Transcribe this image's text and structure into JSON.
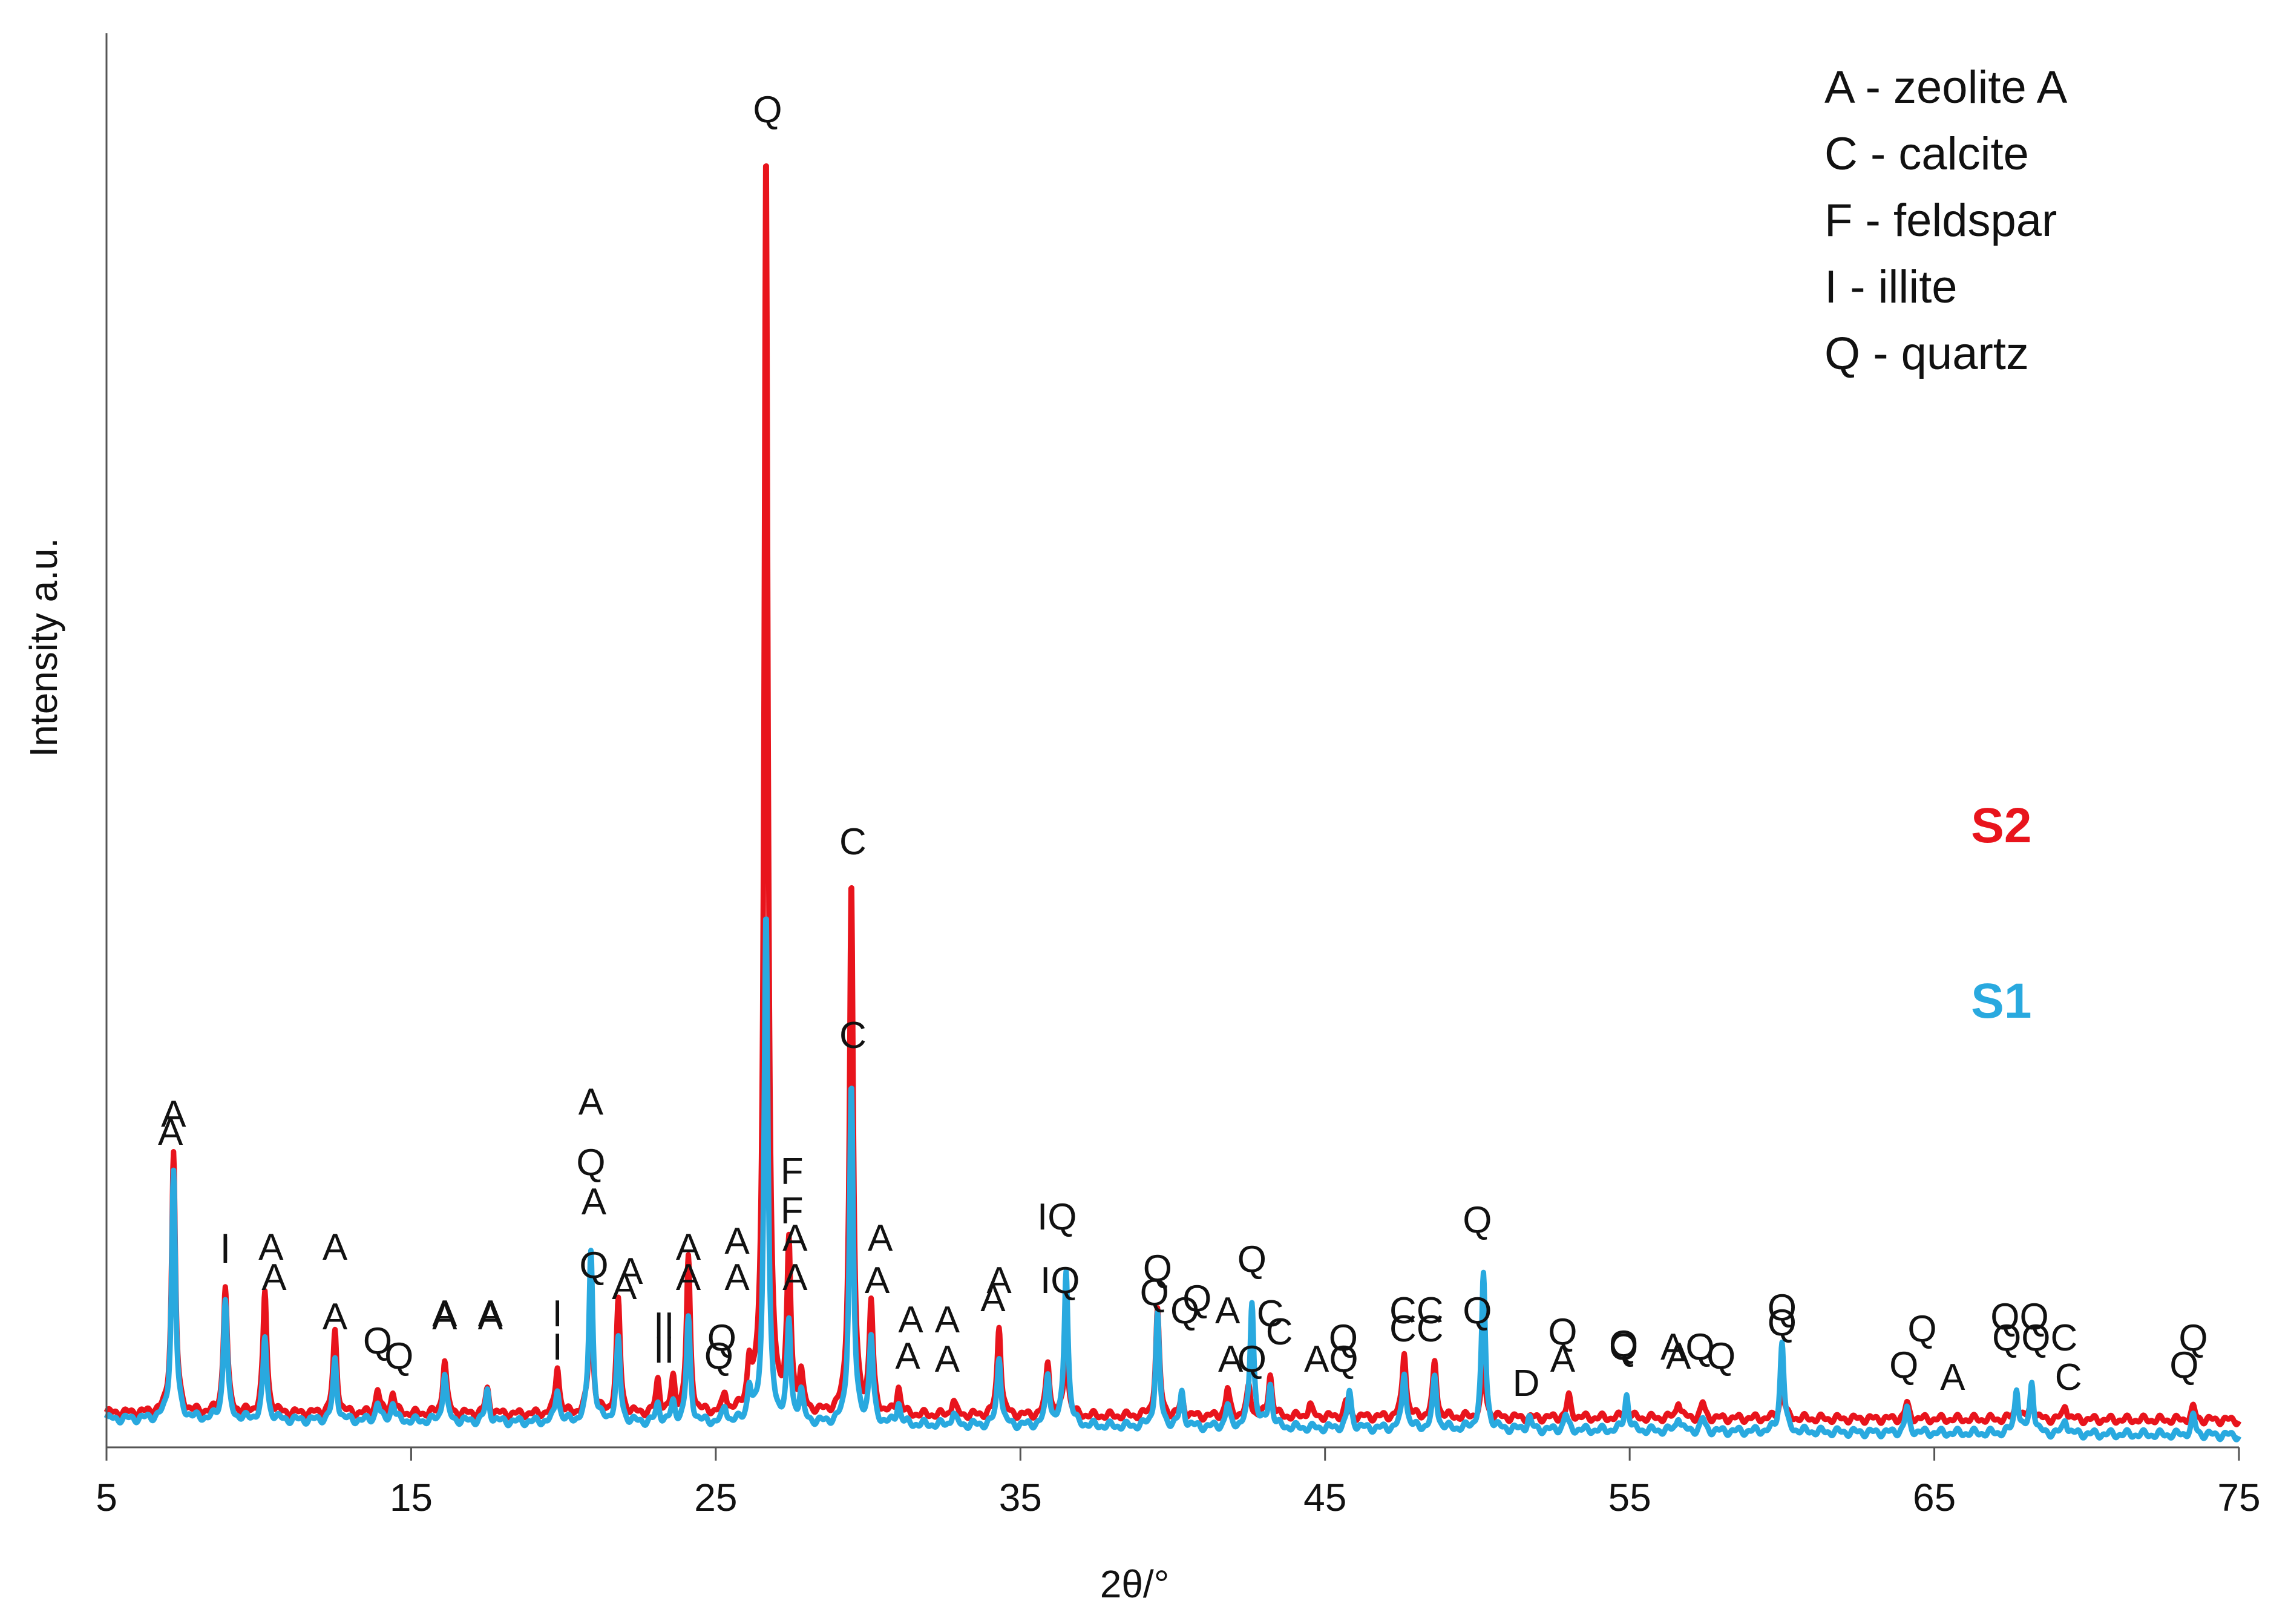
{
  "chart_data": {
    "type": "line",
    "title": "",
    "xlabel": "2θ/°",
    "ylabel": "Intensity a.u.",
    "xlim": [
      5,
      75
    ],
    "xticks": [
      5,
      15,
      25,
      35,
      45,
      55,
      65,
      75
    ],
    "xtick_labels": [
      "5",
      "15",
      "25",
      "35",
      "45",
      "55",
      "65",
      "75"
    ],
    "grid": false,
    "colors": {
      "S1": "#29a9df",
      "S2": "#e8141c"
    },
    "legend": {
      "position": "top-right",
      "entries": [
        "A - zeolite A",
        "C - calcite",
        "F - feldspar",
        "I - illite",
        "Q - quartz"
      ]
    },
    "series": [
      {
        "name": "S2",
        "color": "#e8141c",
        "baseline_start": 0.57,
        "baseline_end": 0.45,
        "peaks": [
          [
            7.2,
            4.3
          ],
          [
            8.9,
            2.1
          ],
          [
            10.2,
            2.0
          ],
          [
            12.5,
            1.35
          ],
          [
            13.9,
            0.4
          ],
          [
            14.4,
            0.35
          ],
          [
            16.1,
            0.9
          ],
          [
            17.5,
            0.4
          ],
          [
            19.8,
            0.8
          ],
          [
            20.9,
            2.0
          ],
          [
            21.8,
            1.85
          ],
          [
            23.1,
            0.55
          ],
          [
            23.6,
            0.55
          ],
          [
            24.1,
            2.55
          ],
          [
            25.3,
            0.3
          ],
          [
            26.1,
            0.7
          ],
          [
            26.65,
            21.0
          ],
          [
            27.4,
            2.7
          ],
          [
            27.8,
            0.6
          ],
          [
            29.45,
            8.8
          ],
          [
            30.1,
            1.8
          ],
          [
            31.0,
            0.45
          ],
          [
            32.8,
            0.25
          ],
          [
            34.3,
            1.5
          ],
          [
            35.9,
            0.9
          ],
          [
            36.5,
            1.2
          ],
          [
            39.5,
            1.75
          ],
          [
            40.3,
            0.3
          ],
          [
            41.8,
            0.45
          ],
          [
            42.5,
            0.5
          ],
          [
            43.2,
            0.7
          ],
          [
            44.5,
            0.2
          ],
          [
            45.7,
            0.25
          ],
          [
            47.6,
            1.1
          ],
          [
            48.6,
            0.9
          ],
          [
            50.2,
            0.9
          ],
          [
            53.0,
            0.35
          ],
          [
            54.9,
            0.25
          ],
          [
            56.6,
            0.3
          ],
          [
            57.4,
            0.25
          ],
          [
            60.0,
            0.6
          ],
          [
            64.1,
            0.25
          ],
          [
            67.7,
            0.3
          ],
          [
            68.2,
            0.35
          ],
          [
            69.3,
            0.25
          ],
          [
            73.5,
            0.2
          ]
        ]
      },
      {
        "name": "S1",
        "color": "#29a9df",
        "baseline_start": 0.47,
        "baseline_end": 0.2,
        "peaks": [
          [
            7.2,
            4.1
          ],
          [
            8.9,
            2.0
          ],
          [
            10.2,
            1.35
          ],
          [
            12.5,
            1.0
          ],
          [
            13.9,
            0.3
          ],
          [
            14.4,
            0.3
          ],
          [
            16.1,
            0.8
          ],
          [
            17.5,
            0.5
          ],
          [
            19.8,
            0.55
          ],
          [
            20.9,
            2.85
          ],
          [
            21.8,
            1.35
          ],
          [
            23.1,
            0.3
          ],
          [
            23.6,
            0.3
          ],
          [
            24.1,
            1.7
          ],
          [
            25.3,
            0.25
          ],
          [
            26.1,
            0.55
          ],
          [
            26.65,
            8.5
          ],
          [
            27.4,
            1.6
          ],
          [
            27.8,
            0.5
          ],
          [
            29.45,
            5.6
          ],
          [
            30.1,
            1.4
          ],
          [
            31.0,
            0.35
          ],
          [
            32.8,
            0.2
          ],
          [
            34.3,
            1.15
          ],
          [
            35.9,
            0.85
          ],
          [
            36.5,
            2.6
          ],
          [
            39.5,
            1.85
          ],
          [
            40.3,
            0.55
          ],
          [
            41.8,
            0.35
          ],
          [
            42.6,
            2.1
          ],
          [
            43.2,
            0.7
          ],
          [
            45.8,
            0.6
          ],
          [
            47.6,
            0.95
          ],
          [
            48.6,
            0.85
          ],
          [
            50.2,
            2.55
          ],
          [
            51.7,
            0.2
          ],
          [
            52.9,
            0.25
          ],
          [
            54.9,
            0.6
          ],
          [
            56.6,
            0.25
          ],
          [
            57.4,
            0.2
          ],
          [
            60.0,
            1.5
          ],
          [
            64.1,
            0.4
          ],
          [
            67.7,
            0.75
          ],
          [
            68.2,
            0.85
          ],
          [
            69.3,
            0.25
          ],
          [
            73.5,
            0.3
          ]
        ]
      }
    ],
    "series_labels": [
      {
        "series": "S2",
        "text": "S2",
        "x": 67.2,
        "y": 10.0
      },
      {
        "series": "S1",
        "text": "S1",
        "x": 67.2,
        "y": 7.1
      }
    ],
    "annotations": [
      {
        "series": "S2",
        "text": "A",
        "x": 7.2,
        "y": 5.3
      },
      {
        "series": "S2",
        "text": "I",
        "x": 8.9,
        "y": 3.1
      },
      {
        "series": "S2",
        "text": "A",
        "x": 10.4,
        "y": 3.1
      },
      {
        "series": "S2",
        "text": "A",
        "x": 12.5,
        "y": 3.1
      },
      {
        "series": "S2",
        "text": "Q",
        "x": 13.9,
        "y": 1.55
      },
      {
        "series": "S2",
        "text": "A",
        "x": 16.1,
        "y": 2.0
      },
      {
        "series": "S2",
        "text": "A",
        "x": 17.6,
        "y": 2.0
      },
      {
        "series": "S2",
        "text": "I",
        "x": 19.8,
        "y": 2.0
      },
      {
        "series": "S2",
        "text": "A",
        "x": 21.0,
        "y": 3.85
      },
      {
        "series": "S2",
        "text": "Q",
        "x": 21.0,
        "y": 2.8
      },
      {
        "series": "S2",
        "text": "A",
        "x": 22.2,
        "y": 2.7
      },
      {
        "series": "S2",
        "text": "II",
        "x": 23.3,
        "y": 1.8
      },
      {
        "series": "S2",
        "text": "A",
        "x": 24.1,
        "y": 3.1
      },
      {
        "series": "S2",
        "text": "A",
        "x": 25.7,
        "y": 3.2
      },
      {
        "series": "S2",
        "text": "Q",
        "x": 25.2,
        "y": 1.6
      },
      {
        "series": "S2",
        "text": "Q",
        "x": 26.7,
        "y": 21.9
      },
      {
        "series": "S2",
        "text": "F",
        "x": 27.5,
        "y": 4.35
      },
      {
        "series": "S2",
        "text": "A",
        "x": 27.6,
        "y": 3.25
      },
      {
        "series": "S2",
        "text": "C",
        "x": 29.5,
        "y": 9.8
      },
      {
        "series": "S2",
        "text": "A",
        "x": 30.4,
        "y": 3.25
      },
      {
        "series": "S2",
        "text": "A",
        "x": 31.4,
        "y": 1.9
      },
      {
        "series": "S2",
        "text": "A",
        "x": 32.6,
        "y": 1.9
      },
      {
        "series": "S2",
        "text": "A",
        "x": 34.3,
        "y": 2.55
      },
      {
        "series": "S2",
        "text": "IQ",
        "x": 36.3,
        "y": 2.55
      },
      {
        "series": "S2",
        "text": "Q",
        "x": 39.5,
        "y": 2.75
      },
      {
        "series": "S2",
        "text": "Q",
        "x": 40.4,
        "y": 2.05
      },
      {
        "series": "S2",
        "text": "A",
        "x": 41.8,
        "y": 2.05
      },
      {
        "series": "S2",
        "text": "C",
        "x": 43.2,
        "y": 2.0
      },
      {
        "series": "S2",
        "text": "Q",
        "x": 42.6,
        "y": 1.25
      },
      {
        "series": "S2",
        "text": "AQ",
        "x": 45.2,
        "y": 1.25
      },
      {
        "series": "S2",
        "text": "CC",
        "x": 48.0,
        "y": 2.05
      },
      {
        "series": "S2",
        "text": "Q",
        "x": 50.0,
        "y": 2.05
      },
      {
        "series": "S2",
        "text": "Q",
        "x": 52.8,
        "y": 1.7
      },
      {
        "series": "S2",
        "text": "Q",
        "x": 54.8,
        "y": 1.45
      },
      {
        "series": "S2",
        "text": "AQ",
        "x": 56.9,
        "y": 1.45
      },
      {
        "series": "S2",
        "text": "Q",
        "x": 60.0,
        "y": 1.85
      },
      {
        "series": "S2",
        "text": "Q",
        "x": 64.6,
        "y": 1.75
      },
      {
        "series": "S2",
        "text": "QQC",
        "x": 68.3,
        "y": 1.6
      },
      {
        "series": "S2",
        "text": "Q",
        "x": 73.5,
        "y": 1.6
      },
      {
        "series": "S1",
        "text": "A",
        "x": 7.1,
        "y": 5.0
      },
      {
        "series": "S1",
        "text": "I",
        "x": 8.9,
        "y": 3.05
      },
      {
        "series": "S1",
        "text": "A",
        "x": 10.5,
        "y": 2.6
      },
      {
        "series": "S1",
        "text": "A",
        "x": 12.5,
        "y": 1.95
      },
      {
        "series": "S1",
        "text": "Q",
        "x": 14.6,
        "y": 1.3
      },
      {
        "series": "S1",
        "text": "A",
        "x": 16.1,
        "y": 1.95
      },
      {
        "series": "S1",
        "text": "A",
        "x": 17.6,
        "y": 1.95
      },
      {
        "series": "S1",
        "text": "I",
        "x": 19.8,
        "y": 1.45
      },
      {
        "series": "S1",
        "text": "A",
        "x": 20.9,
        "y": 5.5
      },
      {
        "series": "S1",
        "text": "Q",
        "x": 20.9,
        "y": 4.5
      },
      {
        "series": "S1",
        "text": "A",
        "x": 22.0,
        "y": 2.45
      },
      {
        "series": "S1",
        "text": "II",
        "x": 23.3,
        "y": 1.4
      },
      {
        "series": "S1",
        "text": "A",
        "x": 24.1,
        "y": 2.6
      },
      {
        "series": "S1",
        "text": "A",
        "x": 25.7,
        "y": 2.6
      },
      {
        "series": "S1",
        "text": "Q",
        "x": 25.1,
        "y": 1.3
      },
      {
        "series": "S1",
        "text": "F",
        "x": 27.5,
        "y": 3.7
      },
      {
        "series": "S1",
        "text": "A",
        "x": 27.6,
        "y": 2.6
      },
      {
        "series": "S1",
        "text": "C",
        "x": 29.5,
        "y": 6.6
      },
      {
        "series": "S1",
        "text": "A",
        "x": 30.3,
        "y": 2.55
      },
      {
        "series": "S1",
        "text": "A",
        "x": 31.3,
        "y": 1.3
      },
      {
        "series": "S1",
        "text": "A",
        "x": 32.6,
        "y": 1.25
      },
      {
        "series": "S1",
        "text": "A",
        "x": 34.1,
        "y": 2.25
      },
      {
        "series": "S1",
        "text": "IQ",
        "x": 36.2,
        "y": 3.6
      },
      {
        "series": "S1",
        "text": "Q",
        "x": 39.4,
        "y": 2.35
      },
      {
        "series": "S1",
        "text": "Q",
        "x": 40.8,
        "y": 2.25
      },
      {
        "series": "S1",
        "text": "A",
        "x": 41.9,
        "y": 1.25
      },
      {
        "series": "S1",
        "text": "Q",
        "x": 42.6,
        "y": 2.9
      },
      {
        "series": "S1",
        "text": "C",
        "x": 43.5,
        "y": 1.7
      },
      {
        "series": "S1",
        "text": "Q",
        "x": 45.6,
        "y": 1.6
      },
      {
        "series": "S1",
        "text": "CC",
        "x": 48.0,
        "y": 1.75
      },
      {
        "series": "S1",
        "text": "Q",
        "x": 50.0,
        "y": 3.55
      },
      {
        "series": "S1",
        "text": "D",
        "x": 51.6,
        "y": 0.85
      },
      {
        "series": "S1",
        "text": "A",
        "x": 52.8,
        "y": 1.25
      },
      {
        "series": "S1",
        "text": "Q",
        "x": 54.8,
        "y": 1.5
      },
      {
        "series": "S1",
        "text": "A",
        "x": 56.6,
        "y": 1.3
      },
      {
        "series": "S1",
        "text": "Q",
        "x": 58.0,
        "y": 1.3
      },
      {
        "series": "S1",
        "text": "Q",
        "x": 60.0,
        "y": 2.1
      },
      {
        "series": "S1",
        "text": "Q",
        "x": 64.0,
        "y": 1.15
      },
      {
        "series": "S1",
        "text": "A",
        "x": 65.6,
        "y": 0.95
      },
      {
        "series": "S1",
        "text": "QQ",
        "x": 67.8,
        "y": 1.95
      },
      {
        "series": "S1",
        "text": "C",
        "x": 69.4,
        "y": 0.95
      },
      {
        "series": "S1",
        "text": "Q",
        "x": 73.2,
        "y": 1.15
      }
    ]
  }
}
